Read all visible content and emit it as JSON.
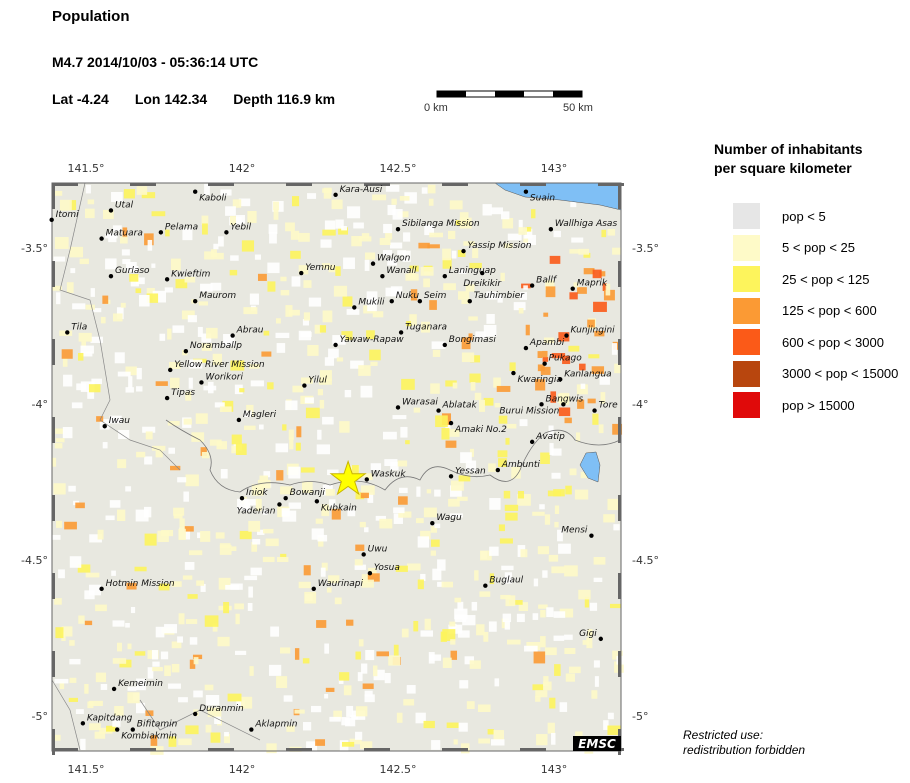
{
  "header": {
    "title": "Population",
    "event": "M4.7  2014/10/03 - 05:36:14 UTC",
    "lat_label": "Lat -4.24",
    "lon_label": "Lon 142.34",
    "depth_label": "Depth 116.9 km"
  },
  "scale_bar": {
    "start_label": "0 km",
    "end_label": "50 km"
  },
  "map": {
    "lon_ticks": [
      "141.5°",
      "142°",
      "142.5°",
      "143°"
    ],
    "lat_ticks": [
      "-3.5°",
      "-4°",
      "-4.5°",
      "-5°"
    ],
    "lon_range": [
      141.39,
      143.18
    ],
    "lat_range": [
      -3.29,
      -5.11
    ],
    "epicenter": {
      "lon": 142.34,
      "lat": -4.24,
      "color": "#ffff00"
    },
    "sea_color": "#7fbff5",
    "land_color": "#e8e8e0",
    "logo": "EMSC",
    "cities": [
      {
        "name": "Kaboli",
        "lon": 141.85,
        "lat": -3.32
      },
      {
        "name": "Kara-Ausi",
        "lon": 142.3,
        "lat": -3.33
      },
      {
        "name": "Suain",
        "lon": 142.91,
        "lat": -3.32
      },
      {
        "name": "Itomi",
        "lon": 141.39,
        "lat": -3.41
      },
      {
        "name": "Utal",
        "lon": 141.58,
        "lat": -3.38
      },
      {
        "name": "Pelama",
        "lon": 141.74,
        "lat": -3.45
      },
      {
        "name": "Yebil",
        "lon": 141.95,
        "lat": -3.45
      },
      {
        "name": "Matuara",
        "lon": 141.55,
        "lat": -3.47
      },
      {
        "name": "Sibilanga Mission",
        "lon": 142.5,
        "lat": -3.44
      },
      {
        "name": "Wallhiga Asas",
        "lon": 142.99,
        "lat": -3.44
      },
      {
        "name": "Yassip Mission",
        "lon": 142.71,
        "lat": -3.51
      },
      {
        "name": "Walgon",
        "lon": 142.42,
        "lat": -3.55
      },
      {
        "name": "Wanall",
        "lon": 142.45,
        "lat": -3.59
      },
      {
        "name": "Laninguap",
        "lon": 142.65,
        "lat": -3.59
      },
      {
        "name": "Dreikikir",
        "lon": 142.77,
        "lat": -3.58
      },
      {
        "name": "Ballf",
        "lon": 142.93,
        "lat": -3.62
      },
      {
        "name": "Maprik",
        "lon": 143.06,
        "lat": -3.63
      },
      {
        "name": "Yemnu",
        "lon": 142.19,
        "lat": -3.58
      },
      {
        "name": "Gurlaso",
        "lon": 141.58,
        "lat": -3.59
      },
      {
        "name": "Kwieftim",
        "lon": 141.76,
        "lat": -3.6
      },
      {
        "name": "Maurom",
        "lon": 141.85,
        "lat": -3.67
      },
      {
        "name": "Mukili",
        "lon": 142.36,
        "lat": -3.69
      },
      {
        "name": "Nuku",
        "lon": 142.48,
        "lat": -3.67
      },
      {
        "name": "Seim",
        "lon": 142.57,
        "lat": -3.67
      },
      {
        "name": "Tauhimbier",
        "lon": 142.73,
        "lat": -3.67
      },
      {
        "name": "Tila",
        "lon": 141.44,
        "lat": -3.77
      },
      {
        "name": "Abrau",
        "lon": 141.97,
        "lat": -3.78
      },
      {
        "name": "Tuganara",
        "lon": 142.51,
        "lat": -3.77
      },
      {
        "name": "Bongimasi",
        "lon": 142.65,
        "lat": -3.81
      },
      {
        "name": "Yawaw-Rapaw",
        "lon": 142.3,
        "lat": -3.81
      },
      {
        "name": "Noramballp",
        "lon": 141.82,
        "lat": -3.83
      },
      {
        "name": "Kunjingini",
        "lon": 143.04,
        "lat": -3.78
      },
      {
        "name": "Apambi",
        "lon": 142.91,
        "lat": -3.82
      },
      {
        "name": "Pukago",
        "lon": 142.97,
        "lat": -3.87
      },
      {
        "name": "Kwaringia",
        "lon": 142.87,
        "lat": -3.9
      },
      {
        "name": "Kanlangua",
        "lon": 143.02,
        "lat": -3.92
      },
      {
        "name": "Yellow River Mission",
        "lon": 141.77,
        "lat": -3.89
      },
      {
        "name": "Worikori",
        "lon": 141.87,
        "lat": -3.93
      },
      {
        "name": "Yilul",
        "lon": 142.2,
        "lat": -3.94
      },
      {
        "name": "Tipas",
        "lon": 141.76,
        "lat": -3.98
      },
      {
        "name": "Bangwis",
        "lon": 142.96,
        "lat": -4.0
      },
      {
        "name": "Burui Mission",
        "lon": 143.03,
        "lat": -4.0
      },
      {
        "name": "Tore",
        "lon": 143.13,
        "lat": -4.02
      },
      {
        "name": "Warasai",
        "lon": 142.5,
        "lat": -4.01
      },
      {
        "name": "Ablatak",
        "lon": 142.63,
        "lat": -4.02
      },
      {
        "name": "Amaki No.2",
        "lon": 142.67,
        "lat": -4.06
      },
      {
        "name": "Magleri",
        "lon": 141.99,
        "lat": -4.05
      },
      {
        "name": "Iwau",
        "lon": 141.56,
        "lat": -4.07
      },
      {
        "name": "Avatip",
        "lon": 142.93,
        "lat": -4.12
      },
      {
        "name": "Yessan",
        "lon": 142.67,
        "lat": -4.23
      },
      {
        "name": "Ambunti",
        "lon": 142.82,
        "lat": -4.21
      },
      {
        "name": "Waskuk",
        "lon": 142.4,
        "lat": -4.24
      },
      {
        "name": "Iniok",
        "lon": 142.0,
        "lat": -4.3
      },
      {
        "name": "Bowanji",
        "lon": 142.14,
        "lat": -4.3
      },
      {
        "name": "Kubkain",
        "lon": 142.24,
        "lat": -4.31
      },
      {
        "name": "Yaderian",
        "lon": 142.12,
        "lat": -4.32
      },
      {
        "name": "Wagu",
        "lon": 142.61,
        "lat": -4.38
      },
      {
        "name": "Mensi",
        "lon": 143.12,
        "lat": -4.42
      },
      {
        "name": "Uwu",
        "lon": 142.39,
        "lat": -4.48
      },
      {
        "name": "Yosua",
        "lon": 142.41,
        "lat": -4.54
      },
      {
        "name": "Waurinapi",
        "lon": 142.23,
        "lat": -4.59
      },
      {
        "name": "Hotmin Mission",
        "lon": 141.55,
        "lat": -4.59
      },
      {
        "name": "Buglaul",
        "lon": 142.78,
        "lat": -4.58
      },
      {
        "name": "Gigi",
        "lon": 143.15,
        "lat": -4.75
      },
      {
        "name": "Kemeimin",
        "lon": 141.59,
        "lat": -4.91
      },
      {
        "name": "Duranmin",
        "lon": 141.85,
        "lat": -4.99
      },
      {
        "name": "Kapitdang",
        "lon": 141.49,
        "lat": -5.02
      },
      {
        "name": "Kombiakmin",
        "lon": 141.6,
        "lat": -5.04
      },
      {
        "name": "Bifitamin",
        "lon": 141.65,
        "lat": -5.04
      },
      {
        "name": "Aklapmin",
        "lon": 142.03,
        "lat": -5.04
      }
    ]
  },
  "legend": {
    "title_line1": "Number of inhabitants",
    "title_line2": "per square kilometer",
    "items": [
      {
        "label": "pop < 5",
        "color": "#e6e6e6"
      },
      {
        "label": "5 < pop < 25",
        "color": "#fefac8"
      },
      {
        "label": "25 < pop < 125",
        "color": "#fdf45c"
      },
      {
        "label": "125 < pop < 600",
        "color": "#fb9a34"
      },
      {
        "label": "600 < pop < 3000",
        "color": "#fb5a18"
      },
      {
        "label": "3000 < pop < 15000",
        "color": "#b8460e"
      },
      {
        "label": "pop > 15000",
        "color": "#e00a0a"
      }
    ]
  },
  "footer": {
    "note_line1": "Restricted use:",
    "note_line2": "redistribution forbidden"
  }
}
